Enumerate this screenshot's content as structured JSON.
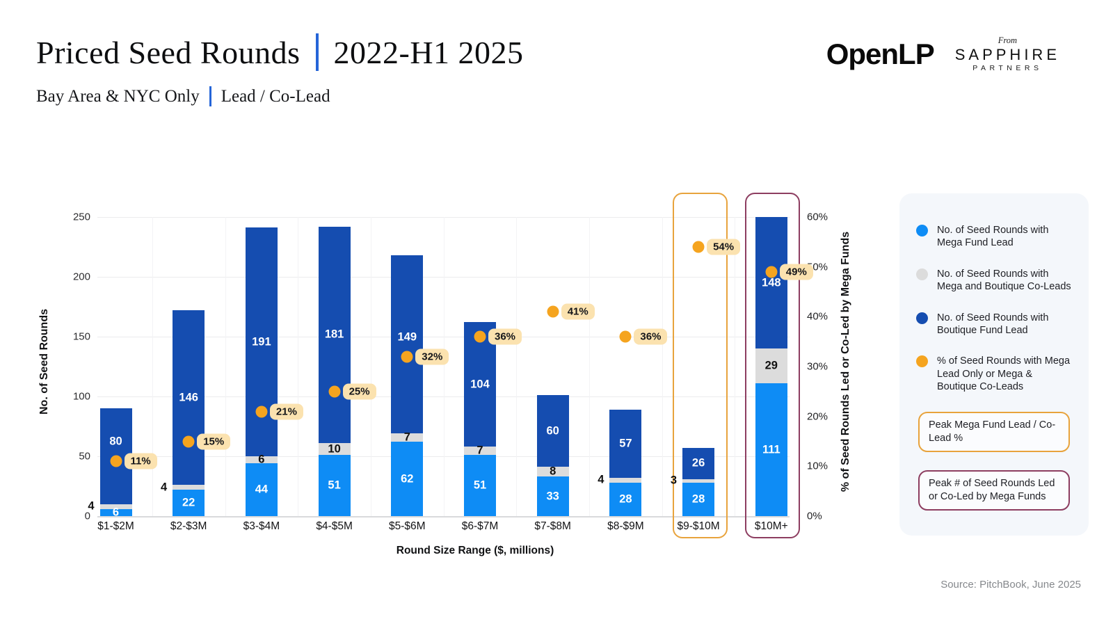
{
  "header": {
    "title_left": "Priced Seed Rounds",
    "title_right": "2022-H1 2025",
    "subtitle_left": "Bay Area & NYC Only",
    "subtitle_right": "Lead / Co-Lead"
  },
  "logos": {
    "openlp": "OpenLP",
    "from": "From",
    "sapphire": "SAPPHIRE",
    "partners": "PARTNERS"
  },
  "chart_data": {
    "type": "bar",
    "stacked": true,
    "title": "Priced Seed Rounds | 2022-H1 2025",
    "subtitle": "Bay Area & NYC Only | Lead / Co-Lead",
    "categories": [
      "$1-$2M",
      "$2-$3M",
      "$3-$4M",
      "$4-$5M",
      "$5-$6M",
      "$6-$7M",
      "$7-$8M",
      "$8-$9M",
      "$9-$10M",
      "$10M+"
    ],
    "series": [
      {
        "name": "No. of Seed Rounds with Mega Fund Lead",
        "color": "#0E8CF5",
        "label_color": "#ffffff",
        "values": [
          6,
          22,
          44,
          51,
          62,
          51,
          33,
          28,
          28,
          111
        ]
      },
      {
        "name": "No. of Seed Rounds with Mega and Boutique Co-Leads",
        "color": "#DCDCDC",
        "label_color": "#111111",
        "values": [
          4,
          4,
          6,
          10,
          7,
          7,
          8,
          4,
          3,
          29
        ]
      },
      {
        "name": "No. of Seed Rounds with Boutique Fund Lead",
        "color": "#154DB0",
        "label_color": "#ffffff",
        "values": [
          80,
          146,
          191,
          181,
          149,
          104,
          60,
          57,
          26,
          148
        ]
      }
    ],
    "pct_series": {
      "name": "% of Seed Rounds with Mega Lead Only or Mega & Boutique Co-Leads",
      "color": "#F5A41F",
      "unit": "%",
      "values": [
        11,
        15,
        21,
        25,
        32,
        36,
        41,
        36,
        54,
        49
      ]
    },
    "xlabel": "Round Size Range ($, millions)",
    "ylabel_left": "No. of Seed Rounds",
    "ylabel_right": "% of Seed Rounds Led or Co-Led by Mega Funds",
    "ylim_left": [
      0,
      250
    ],
    "ylim_right_pct": [
      0,
      60
    ],
    "yticks_left": [
      0,
      50,
      100,
      150,
      200,
      250
    ],
    "yticks_right": [
      "0%",
      "10%",
      "20%",
      "30%",
      "40%",
      "50%",
      "60%"
    ],
    "grid": true,
    "legend_position": "right",
    "highlights": [
      {
        "category_index": 8,
        "color": "#E8A33C"
      },
      {
        "category_index": 9,
        "color": "#8D3D60"
      }
    ]
  },
  "callouts": [
    {
      "label": "Peak Mega Fund Lead / Co-Lead %",
      "border_color": "#E8A33C"
    },
    {
      "label": "Peak # of Seed Rounds Led or Co-Led by Mega Funds",
      "border_color": "#8D3D60"
    }
  ],
  "source": "Source: PitchBook, June 2025",
  "colors": {
    "accent_blue": "#2565D8",
    "pill_bg": "#FBE2AF",
    "legend_panel_bg": "#F4F7FB"
  }
}
